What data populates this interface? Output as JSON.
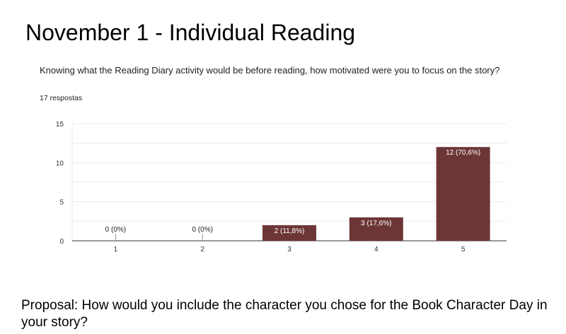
{
  "slide": {
    "title": "November 1 - Individual Reading",
    "proposal": "Proposal: How would you include the character you chose for the Book Character Day in your story?"
  },
  "form": {
    "question": "Knowing what the Reading Diary activity would be before reading, how motivated were you to focus on the story?",
    "responses": "17 respostas"
  },
  "chart_data": {
    "type": "bar",
    "categories": [
      "1",
      "2",
      "3",
      "4",
      "5"
    ],
    "values": [
      0,
      0,
      2,
      3,
      12
    ],
    "data_labels": [
      "0 (0%)",
      "0 (0%)",
      "2 (11,8%)",
      "3 (17,6%)",
      "12 (70,6%)"
    ],
    "ylim": [
      0,
      15
    ],
    "yticks": [
      0,
      5,
      10,
      15
    ],
    "grid": true,
    "bar_color": "#6d3636",
    "title": "",
    "xlabel": "",
    "ylabel": ""
  }
}
